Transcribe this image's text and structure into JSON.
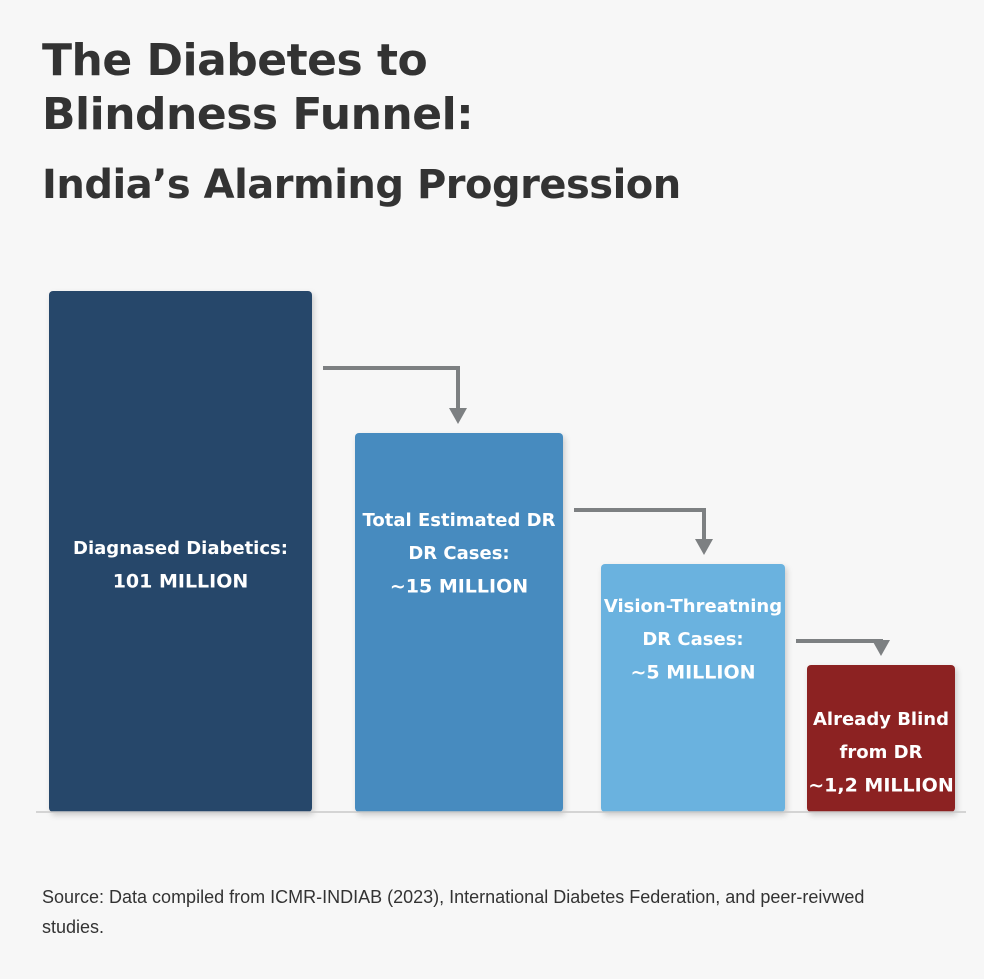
{
  "header": {
    "title_line1": "The Diabetes to",
    "title_line2": "Blindness Funnel:",
    "subtitle": "India’s Alarming Progression"
  },
  "chart_data": {
    "type": "bar",
    "title": "The Diabetes to Blindness Funnel: India’s Alarming Progression",
    "unit": "MILLION",
    "ylim": [
      0,
      101
    ],
    "grid": false,
    "bars": [
      {
        "label_lines": [
          "Diagnased Diabetics:",
          "101 MILLION"
        ],
        "value": 101,
        "color": "#27476b"
      },
      {
        "label_lines": [
          "Total Estimated DR",
          "DR Cases:",
          "~15 MILLION"
        ],
        "value": 15,
        "color": "#478bbf"
      },
      {
        "label_lines": [
          "Vision-Threatning",
          "DR Cases:",
          "~5 MILLION"
        ],
        "value": 5,
        "color": "#6ab2df"
      },
      {
        "label_lines": [
          "Already Blind",
          "from DR",
          "~1,2 MILLION"
        ],
        "value": 1.2,
        "color": "#8c2322"
      }
    ],
    "arrow_color": "#7d8082"
  },
  "footer": {
    "source": "Source: Data compiled from ICMR-INDIAB (2023), International Diabetes Federation, and peer-reivwed studies."
  }
}
